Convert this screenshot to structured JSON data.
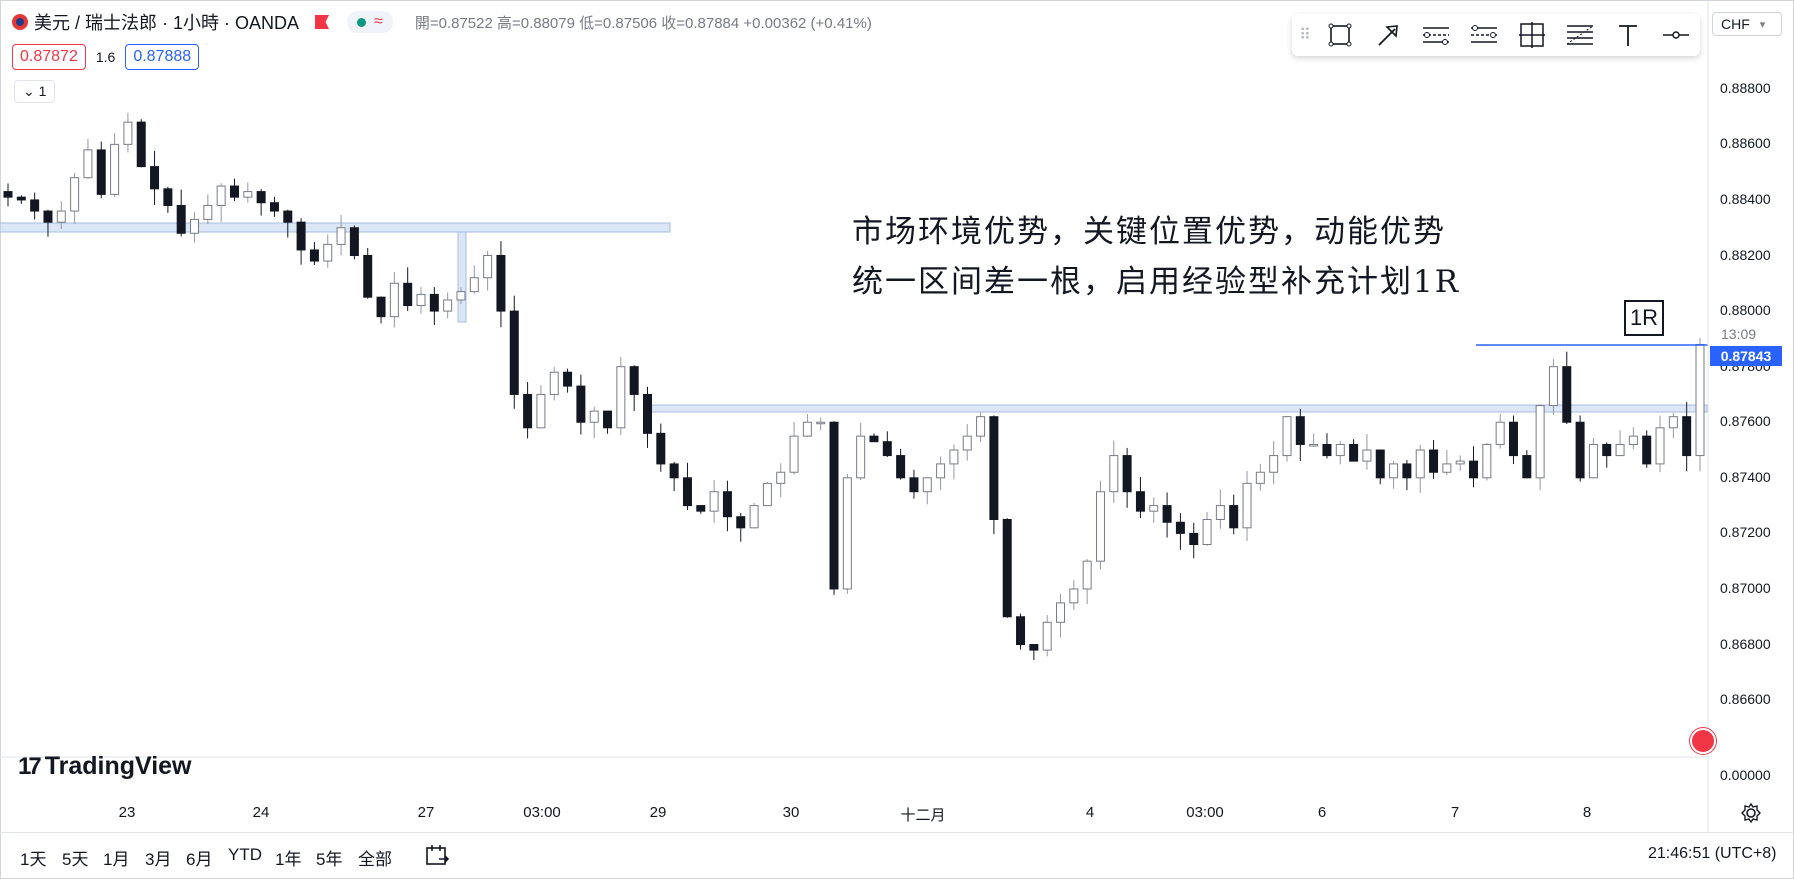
{
  "header": {
    "symbol": "美元 / 瑞士法郎 · 1小時 · OANDA",
    "ohlc": "開=0.87522  高=0.88079  低=0.87506  收=0.87884  +0.00362 (+0.41%)",
    "sell_price": "0.87872",
    "spread": "1.6",
    "buy_price": "0.87888",
    "collapse_label": "1"
  },
  "toolbar": {
    "icons": [
      "rectangle-icon",
      "arrow-icon",
      "long-position-icon",
      "short-position-icon",
      "date-price-range-icon",
      "fib-retracement-icon",
      "text-icon",
      "horizontal-line-icon"
    ]
  },
  "currency": "CHF",
  "annotation": {
    "line1": "市场环境优势，关键位置优势，动能优势",
    "line2": "统一区间差一根，启用经验型补充计划1R",
    "r_label": "1R"
  },
  "countdown": "13:09",
  "current_price": "0.87843",
  "logo": "TradingView",
  "ranges": [
    "1天",
    "5天",
    "1月",
    "3月",
    "6月",
    "YTD",
    "1年",
    "5年",
    "全部"
  ],
  "clock": "21:46:51 (UTC+8)",
  "colors": {
    "up": "#ffffff",
    "down": "#131722",
    "line": "#2962ff",
    "zone": "#dbe6f6"
  },
  "chart_data": {
    "type": "candlestick",
    "instrument": "美元 / 瑞士法郎",
    "timeframe": "1小時",
    "ylim": [
      0.8655,
      0.889
    ],
    "y_ticks": [
      "0.88800",
      "0.88600",
      "0.88400",
      "0.88200",
      "0.88000",
      "0.87800",
      "0.87600",
      "0.87400",
      "0.87200",
      "0.87000",
      "0.86800",
      "0.86600"
    ],
    "y_extra_tick": "0.00000",
    "x_ticks": [
      "23",
      "24",
      "27",
      "03:00",
      "29",
      "30",
      "十二月",
      "4",
      "03:00",
      "6",
      "7",
      "8"
    ],
    "close_path": [
      0.8841,
      0.884,
      0.8836,
      0.8832,
      0.8836,
      0.8848,
      0.8858,
      0.8842,
      0.886,
      0.8868,
      0.8852,
      0.8844,
      0.8838,
      0.8828,
      0.8833,
      0.8838,
      0.8845,
      0.8841,
      0.8843,
      0.8839,
      0.8836,
      0.8832,
      0.8822,
      0.8818,
      0.8824,
      0.883,
      0.882,
      0.8805,
      0.8798,
      0.881,
      0.8802,
      0.8806,
      0.88,
      0.8804,
      0.8807,
      0.8812,
      0.882,
      0.88,
      0.877,
      0.8758,
      0.877,
      0.8778,
      0.8773,
      0.876,
      0.8764,
      0.8758,
      0.878,
      0.877,
      0.8756,
      0.8745,
      0.874,
      0.873,
      0.8728,
      0.8735,
      0.8726,
      0.8722,
      0.873,
      0.8738,
      0.8742,
      0.8755,
      0.876,
      0.876,
      0.87,
      0.874,
      0.8755,
      0.8753,
      0.8748,
      0.874,
      0.8735,
      0.874,
      0.8745,
      0.875,
      0.8755,
      0.8762,
      0.8725,
      0.869,
      0.868,
      0.8678,
      0.8688,
      0.8695,
      0.87,
      0.871,
      0.8735,
      0.8748,
      0.8735,
      0.8728,
      0.873,
      0.8724,
      0.872,
      0.8716,
      0.8725,
      0.873,
      0.8722,
      0.8738,
      0.8742,
      0.8748,
      0.8762,
      0.8752,
      0.8752,
      0.8748,
      0.8752,
      0.8746,
      0.875,
      0.874,
      0.8745,
      0.874,
      0.875,
      0.8742,
      0.8745,
      0.8746,
      0.874,
      0.8752,
      0.876,
      0.8748,
      0.874,
      0.8766,
      0.878,
      0.876,
      0.874,
      0.8752,
      0.8748,
      0.8752,
      0.8755,
      0.8745,
      0.8758,
      0.8762,
      0.8748,
      0.8788
    ]
  }
}
